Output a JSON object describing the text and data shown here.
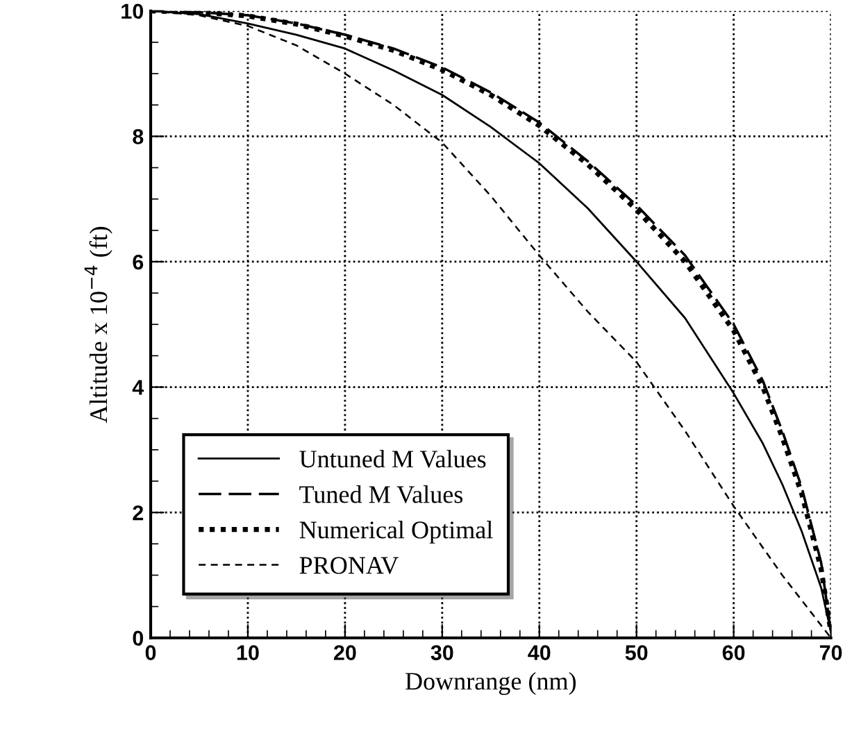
{
  "chart_data": {
    "type": "line",
    "xlabel": "Downrange (nm)",
    "ylabel": "Altitude x 10$^{−4}$ (ft)",
    "xlim": [
      0,
      70
    ],
    "ylim": [
      0,
      10
    ],
    "xticks": [
      0,
      10,
      20,
      30,
      40,
      50,
      60,
      70
    ],
    "yticks": [
      0,
      2,
      4,
      6,
      8,
      10
    ],
    "grid": true,
    "legend": "bottom left",
    "series": [
      {
        "name": "Untuned M Values",
        "color": "#000000",
        "line_style": "solid",
        "x": [
          0,
          5,
          10,
          15,
          20,
          25,
          30,
          35,
          40,
          45,
          50,
          55,
          60,
          63,
          65,
          67,
          69,
          70
        ],
        "values": [
          10,
          9.95,
          9.8,
          9.62,
          9.4,
          9.05,
          8.66,
          8.15,
          7.57,
          6.85,
          6.0,
          5.1,
          3.9,
          3.1,
          2.45,
          1.7,
          0.8,
          0.1
        ]
      },
      {
        "name": "Tuned M Values",
        "color": "#000000",
        "line_style": "dashed",
        "x": [
          0,
          5,
          10,
          15,
          20,
          25,
          30,
          35,
          40,
          45,
          50,
          55,
          60,
          63,
          65,
          67,
          69,
          70
        ],
        "values": [
          10,
          9.98,
          9.93,
          9.8,
          9.62,
          9.4,
          9.1,
          8.7,
          8.22,
          7.6,
          6.9,
          6.1,
          5.0,
          4.1,
          3.3,
          2.4,
          1.2,
          0.1
        ]
      },
      {
        "name": "Numerical Optimal",
        "color": "#000000",
        "line_style": "dotted",
        "x": [
          0,
          5,
          10,
          15,
          20,
          25,
          30,
          35,
          40,
          45,
          50,
          55,
          60,
          63,
          65,
          67,
          69,
          70
        ],
        "values": [
          10,
          9.98,
          9.92,
          9.79,
          9.6,
          9.37,
          9.06,
          8.66,
          8.17,
          7.55,
          6.83,
          6.0,
          4.9,
          4.0,
          3.2,
          2.3,
          1.1,
          0.1
        ]
      },
      {
        "name": "PRONAV",
        "color": "#000000",
        "line_style": "dashed",
        "x": [
          0,
          5,
          10,
          15,
          20,
          25,
          30,
          35,
          40,
          45,
          50,
          55,
          60,
          65,
          70
        ],
        "values": [
          10,
          9.93,
          9.76,
          9.45,
          9.0,
          8.5,
          7.9,
          7.05,
          6.1,
          5.2,
          4.4,
          3.3,
          2.1,
          1.0,
          0.0
        ]
      }
    ]
  }
}
